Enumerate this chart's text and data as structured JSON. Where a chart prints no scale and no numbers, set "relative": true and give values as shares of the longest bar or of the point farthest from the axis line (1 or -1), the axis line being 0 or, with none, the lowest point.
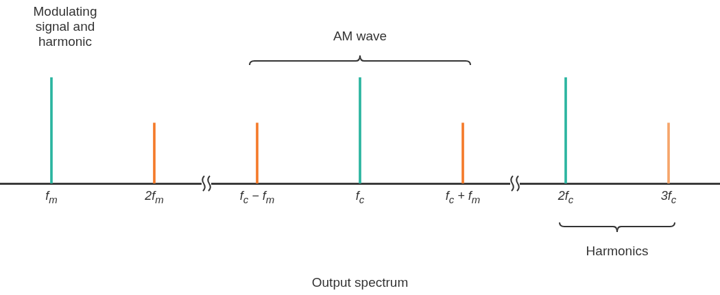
{
  "chart_data": {
    "type": "bar",
    "relative": true,
    "legend": false,
    "grid": false,
    "categories": [
      "f$_{m}$",
      "2f$_{m}$",
      "f$_{c}$ − f$_{m}$",
      "f$_{c}$",
      "f$_{c}$ + f$_{m}$",
      "2f$_{c}$",
      "3f$_{c}$"
    ],
    "values": [
      1,
      0.57,
      0.57,
      1,
      0.57,
      1,
      0.57
    ],
    "colors": [
      "#2bb5a0",
      "#f47a2a",
      "#f47a2a",
      "#2bb5a0",
      "#f47a2a",
      "#2bb5a0",
      "#f6a56a"
    ],
    "annotations": [
      "Modulating signal and harmonic",
      "AM wave",
      "Harmonics",
      "Output spectrum"
    ]
  }
}
